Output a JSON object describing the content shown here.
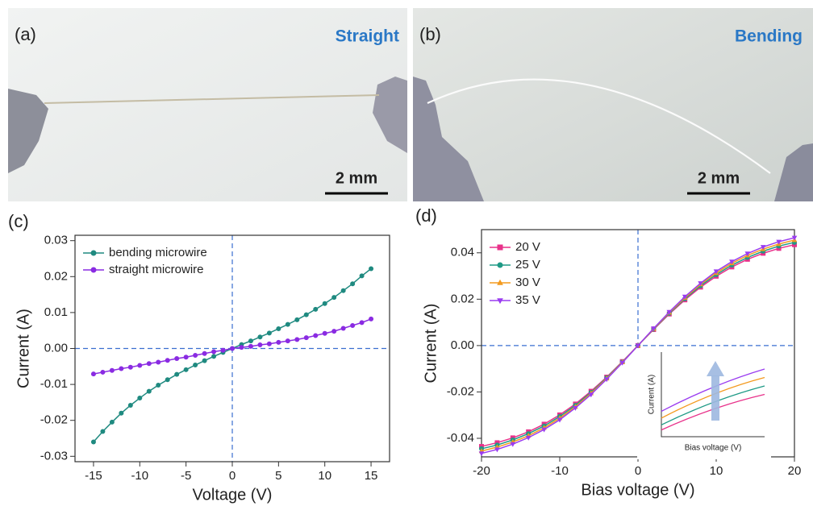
{
  "photos": [
    {
      "label": "(a)",
      "caption": "Straight",
      "scale_bar": "2 mm"
    },
    {
      "label": "(b)",
      "caption": "Bending",
      "scale_bar": "2 mm"
    }
  ],
  "chart_data": [
    {
      "type": "line",
      "label": "(c)",
      "xlabel": "Voltage (V)",
      "ylabel": "Current (A)",
      "xlim": [
        -17,
        17
      ],
      "ylim": [
        -0.0315,
        0.0315
      ],
      "xticks": [
        -15,
        -10,
        -5,
        0,
        5,
        10,
        15
      ],
      "yticks": [
        -0.03,
        -0.02,
        -0.01,
        {
          "value": 0,
          "label": "0.00"
        },
        0.01,
        0.02,
        0.03
      ],
      "legend": "upper left",
      "reference_lines": [
        {
          "axis": "x",
          "value": 0
        },
        {
          "axis": "y",
          "value": 0
        }
      ],
      "x": [
        -15,
        -14,
        -13,
        -12,
        -11,
        -10,
        -9,
        -8,
        -7,
        -6,
        -5,
        -4,
        -3,
        -2,
        -1,
        0,
        1,
        2,
        3,
        4,
        5,
        6,
        7,
        8,
        9,
        10,
        11,
        12,
        13,
        14,
        15
      ],
      "series": [
        {
          "name": "bending microwire",
          "color": "#1f8a80",
          "marker": "circle",
          "values": [
            -0.026,
            -0.0231,
            -0.0205,
            -0.018,
            -0.0158,
            -0.0138,
            -0.0119,
            -0.0102,
            -0.0087,
            -0.0072,
            -0.0059,
            -0.0046,
            -0.0034,
            -0.0022,
            -0.0011,
            0,
            0.0011,
            0.0021,
            0.0032,
            0.0043,
            0.0055,
            0.0067,
            0.008,
            0.0094,
            0.0109,
            0.0125,
            0.0142,
            0.0161,
            0.018,
            0.0202,
            0.0222
          ]
        },
        {
          "name": "straight microwire",
          "color": "#8a2be2",
          "marker": "circle",
          "values": [
            -0.0071,
            -0.0066,
            -0.0061,
            -0.0056,
            -0.0052,
            -0.0047,
            -0.0042,
            -0.0038,
            -0.0033,
            -0.0028,
            -0.0024,
            -0.0019,
            -0.0014,
            -0.0009,
            -0.0005,
            0,
            0.0003,
            0.0006,
            0.001,
            0.0013,
            0.0017,
            0.0021,
            0.0025,
            0.003,
            0.0036,
            0.0042,
            0.0048,
            0.0056,
            0.0064,
            0.0072,
            0.0082
          ]
        }
      ]
    },
    {
      "type": "line",
      "label": "(d)",
      "xlabel": "Bias voltage (V)",
      "ylabel": "Current (A)",
      "xlim": [
        -20,
        20
      ],
      "ylim": [
        -0.048,
        0.05
      ],
      "xticks": [
        -20,
        -10,
        0,
        10,
        20
      ],
      "yticks": [
        -0.04,
        -0.02,
        {
          "value": 0,
          "label": "0.00"
        },
        0.02,
        0.04
      ],
      "legend": "upper left",
      "reference_lines": [
        {
          "axis": "x",
          "value": 0
        },
        {
          "axis": "y",
          "value": 0
        }
      ],
      "x": [
        -20,
        -18,
        -16,
        -14,
        -12,
        -10,
        -8,
        -6,
        -4,
        -2,
        0,
        2,
        4,
        6,
        8,
        10,
        12,
        14,
        16,
        18,
        20
      ],
      "series": [
        {
          "name": "20 V",
          "color": "#e8318a",
          "marker": "square",
          "values": [
            -0.0435,
            -0.0419,
            -0.0398,
            -0.0372,
            -0.0339,
            -0.0299,
            -0.0252,
            -0.0197,
            -0.0136,
            -0.0069,
            0,
            0.0069,
            0.0136,
            0.0197,
            0.0252,
            0.0299,
            0.0339,
            0.0372,
            0.0398,
            0.0419,
            0.0435
          ]
        },
        {
          "name": "25 V",
          "color": "#1f9a86",
          "marker": "circle",
          "values": [
            -0.0445,
            -0.0429,
            -0.0407,
            -0.038,
            -0.0347,
            -0.0306,
            -0.0258,
            -0.0202,
            -0.0139,
            -0.0071,
            0,
            0.0071,
            0.0139,
            0.0202,
            0.0258,
            0.0306,
            0.0347,
            0.038,
            0.0407,
            0.0429,
            0.0445
          ]
        },
        {
          "name": "30 V",
          "color": "#f39a1e",
          "marker": "triangle-up",
          "values": [
            -0.0455,
            -0.0438,
            -0.0416,
            -0.0389,
            -0.0355,
            -0.0313,
            -0.0264,
            -0.0206,
            -0.0142,
            -0.0072,
            0,
            0.0072,
            0.0142,
            0.0206,
            0.0264,
            0.0313,
            0.0355,
            0.0389,
            0.0416,
            0.0438,
            0.0455
          ]
        },
        {
          "name": "35 V",
          "color": "#9a3cf0",
          "marker": "triangle-down",
          "values": [
            -0.0465,
            -0.0448,
            -0.0425,
            -0.0397,
            -0.0362,
            -0.032,
            -0.0269,
            -0.0211,
            -0.0145,
            -0.0074,
            0,
            0.0074,
            0.0145,
            0.0211,
            0.0269,
            0.032,
            0.0362,
            0.0397,
            0.0425,
            0.0448,
            0.0465
          ]
        }
      ],
      "inset": {
        "xlabel": "Bias voltage (V)",
        "ylabel": "Current (A)",
        "xlim": [
          0,
          1
        ],
        "ylim": [
          0,
          1
        ],
        "x": [
          0,
          0.5,
          1
        ],
        "series": [
          {
            "color": "#e8318a",
            "values": [
              0.08,
              0.32,
              0.5
            ]
          },
          {
            "color": "#1f9a86",
            "values": [
              0.14,
              0.4,
              0.6
            ]
          },
          {
            "color": "#f39a1e",
            "values": [
              0.22,
              0.5,
              0.7
            ]
          },
          {
            "color": "#9a3cf0",
            "values": [
              0.3,
              0.58,
              0.8
            ]
          }
        ]
      }
    }
  ]
}
